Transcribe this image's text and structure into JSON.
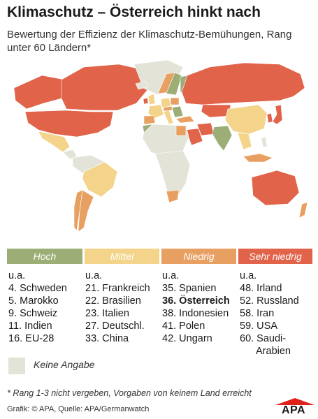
{
  "title": "Klimaschutz – Österreich hinkt nach",
  "subtitle": "Bewertung der Effizienz der Klimaschutz-Bemühungen, Rang unter 60 Ländern*",
  "colors": {
    "hoch": "#9cad76",
    "mittel": "#f4d48a",
    "niedrig": "#e8a062",
    "sehr_niedrig": "#e0634a",
    "keine_angabe": "#e3e3d7"
  },
  "categories": [
    {
      "label": "Hoch",
      "prefix": "u.a.",
      "items": [
        "4. Schweden",
        "5. Marokko",
        "9. Schweiz",
        "11. Indien",
        "16. EU-28"
      ]
    },
    {
      "label": "Mittel",
      "prefix": "u.a.",
      "items": [
        "21. Frankreich",
        "22. Brasilien",
        "23. Italien",
        "27. Deutschl.",
        "33. China"
      ]
    },
    {
      "label": "Niedrig",
      "prefix": "u.a.",
      "items": [
        "35. Spanien",
        "36. Österreich",
        "38. Indonesien",
        "41. Polen",
        "42. Ungarn"
      ]
    },
    {
      "label": "Sehr niedrig",
      "prefix": "u.a.",
      "items": [
        "48. Irland",
        "52. Russland",
        "58. Iran",
        "59. USA",
        "60. Saudi-",
        "Arabien"
      ]
    }
  ],
  "no_data_label": "Keine Angabe",
  "footnote": "* Rang 1-3 nicht vergeben, Vorgaben von keinem Land erreicht",
  "credit": "Grafik: © APA, Quelle: APA/Germanwatch",
  "logo_text": "APA"
}
